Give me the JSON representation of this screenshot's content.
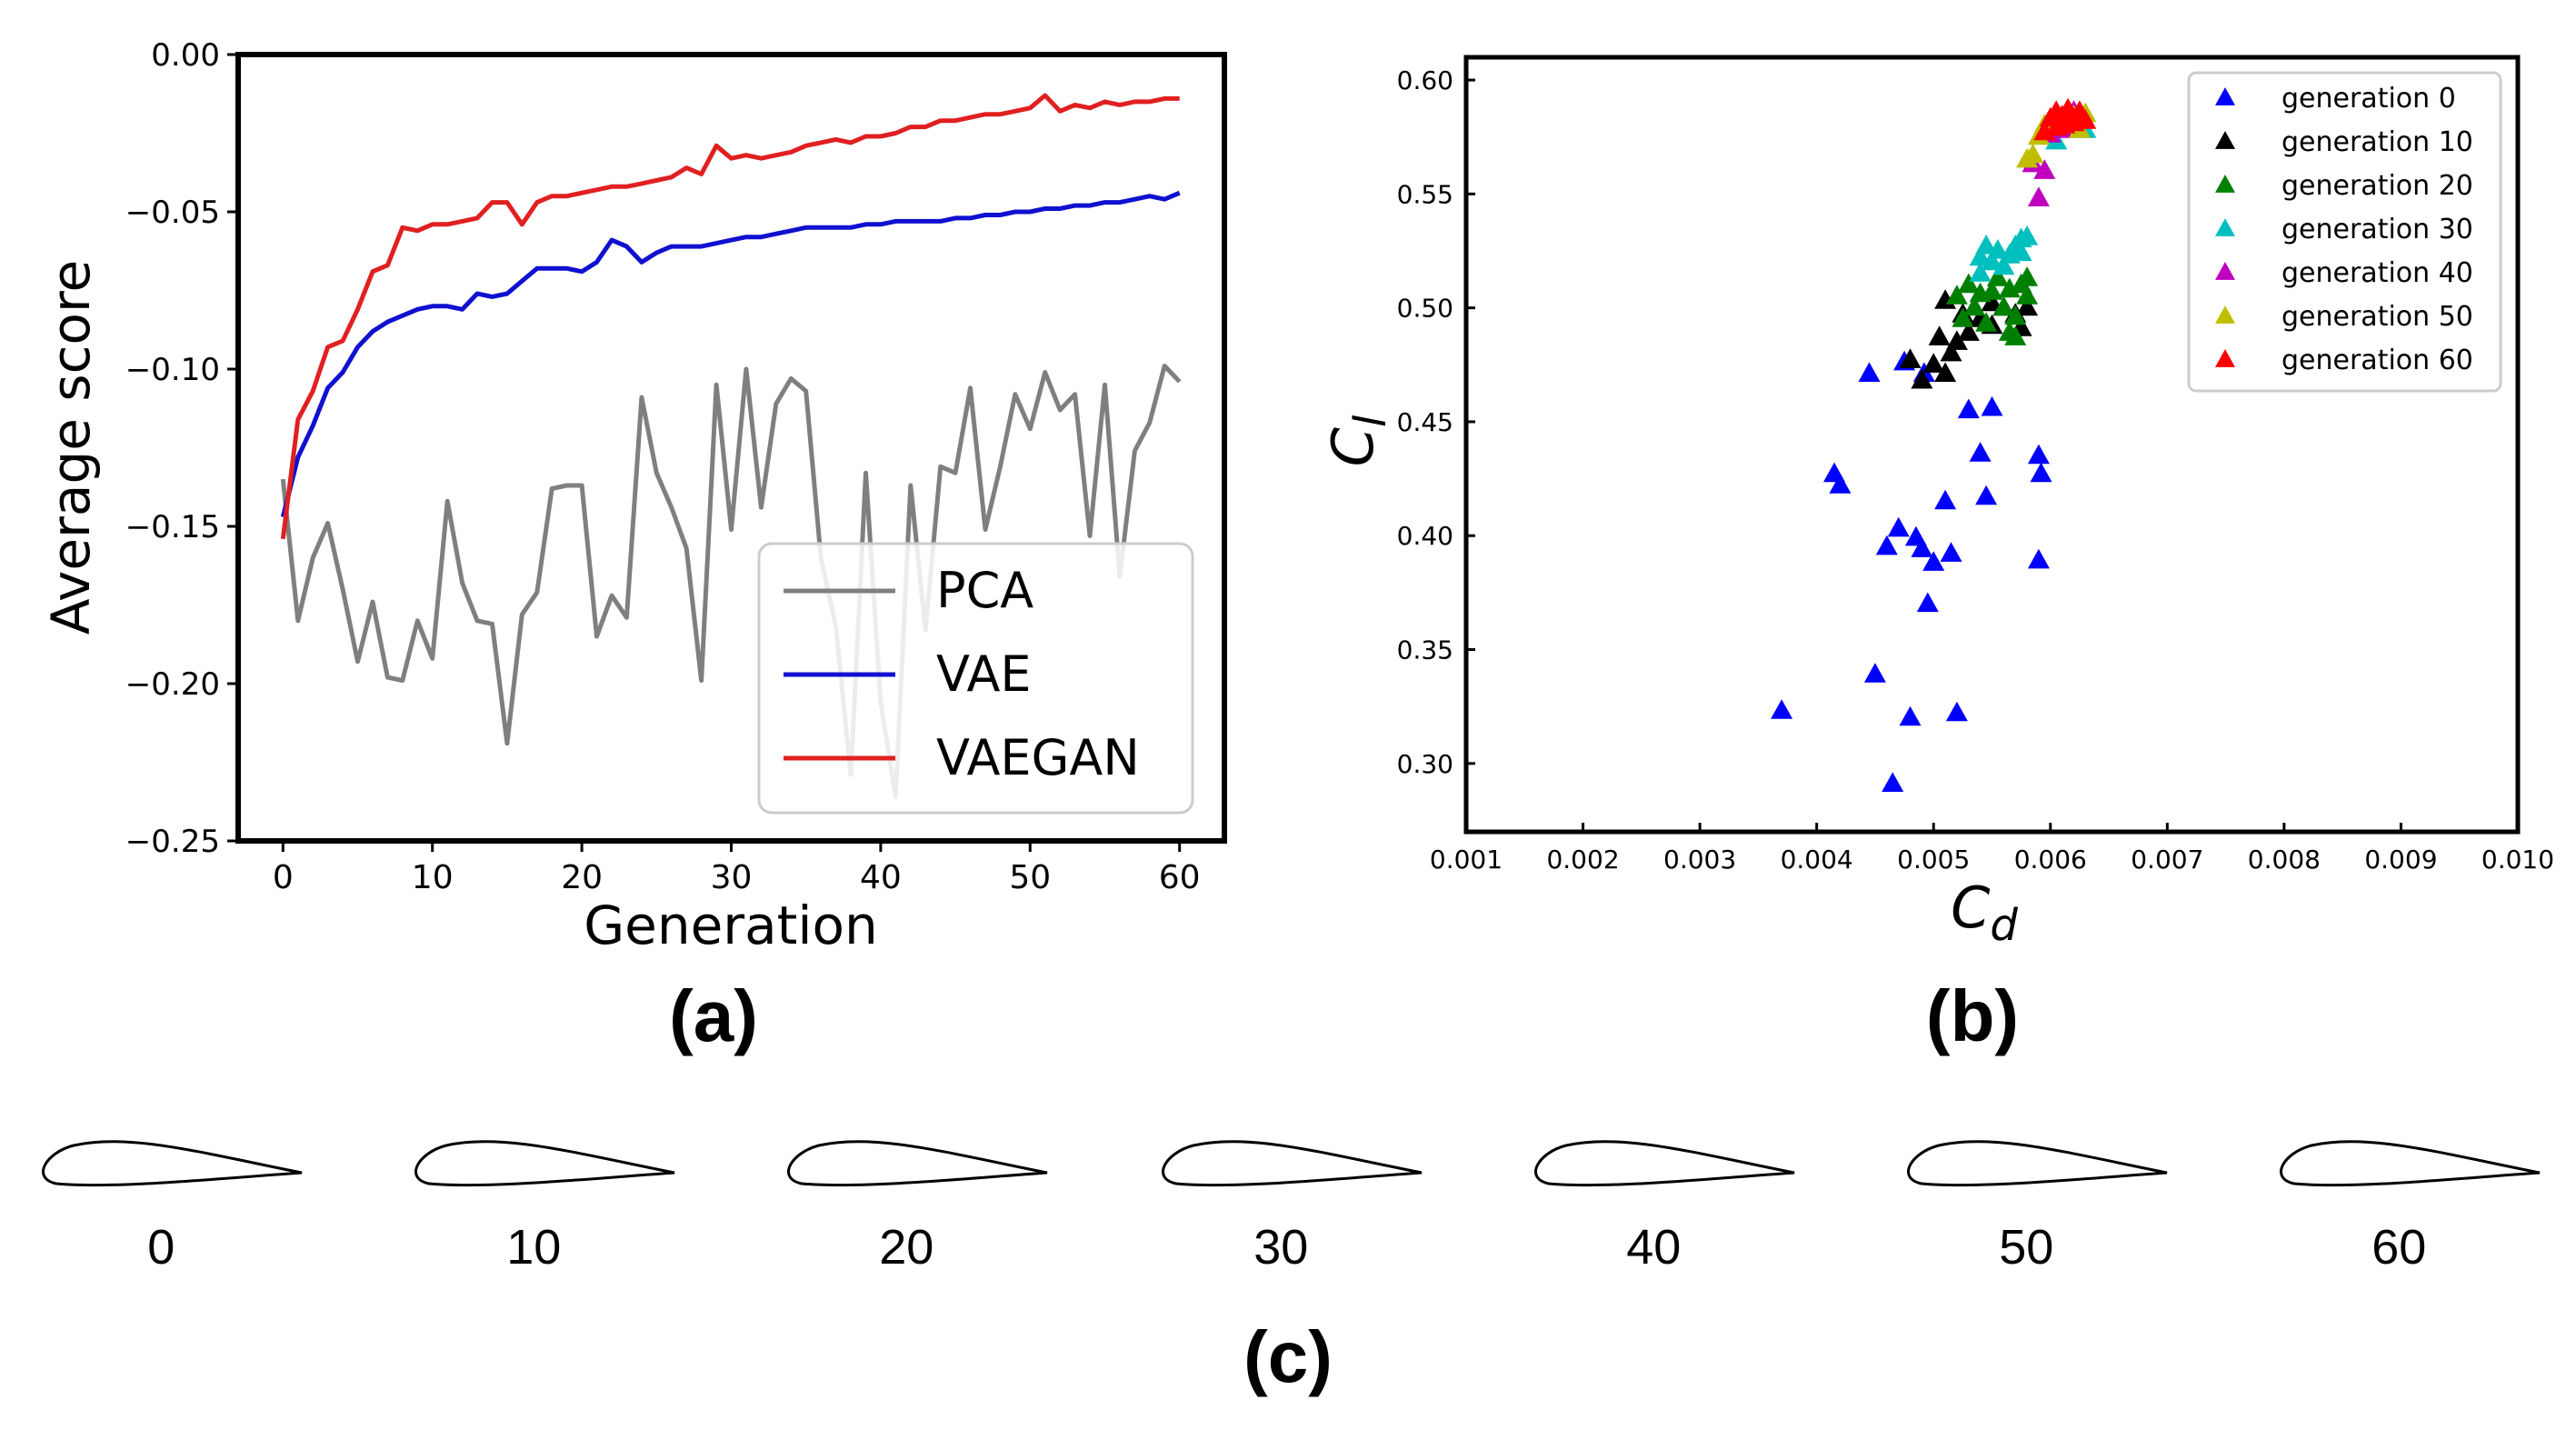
{
  "panels": {
    "a": {
      "label": "(a)"
    },
    "b": {
      "label": "(b)"
    },
    "c": {
      "label": "(c)"
    }
  },
  "chart_data": [
    {
      "id": "a",
      "type": "line",
      "title": "",
      "xlabel": "Generation",
      "ylabel": "Average score",
      "xlim": [
        -3,
        63
      ],
      "ylim": [
        -0.25,
        0.0
      ],
      "xticks": [
        0,
        10,
        20,
        30,
        40,
        50,
        60
      ],
      "xtick_labels": [
        "0",
        "10",
        "20",
        "30",
        "40",
        "50",
        "60"
      ],
      "yticks": [
        0.0,
        -0.05,
        -0.1,
        -0.15,
        -0.2,
        -0.25
      ],
      "ytick_labels": [
        "0.00",
        "−0.05",
        "−0.10",
        "−0.15",
        "−0.20",
        "−0.25"
      ],
      "grid": false,
      "legend_position": "bottom-right",
      "x": [
        0,
        1,
        2,
        3,
        4,
        5,
        6,
        7,
        8,
        9,
        10,
        11,
        12,
        13,
        14,
        15,
        16,
        17,
        18,
        19,
        20,
        21,
        22,
        23,
        24,
        25,
        26,
        27,
        28,
        29,
        30,
        31,
        32,
        33,
        34,
        35,
        36,
        37,
        38,
        39,
        40,
        41,
        42,
        43,
        44,
        45,
        46,
        47,
        48,
        49,
        50,
        51,
        52,
        53,
        54,
        55,
        56,
        57,
        58,
        59,
        60
      ],
      "series": [
        {
          "name": "PCA",
          "color": "#7f7f7f",
          "values": [
            -0.135,
            -0.18,
            -0.16,
            -0.149,
            -0.17,
            -0.193,
            -0.174,
            -0.198,
            -0.199,
            -0.18,
            -0.192,
            -0.142,
            -0.168,
            -0.18,
            -0.181,
            -0.219,
            -0.178,
            -0.171,
            -0.138,
            -0.137,
            -0.137,
            -0.185,
            -0.172,
            -0.179,
            -0.109,
            -0.133,
            -0.144,
            -0.157,
            -0.199,
            -0.105,
            -0.151,
            -0.1,
            -0.144,
            -0.111,
            -0.103,
            -0.107,
            -0.16,
            -0.182,
            -0.229,
            -0.133,
            -0.206,
            -0.236,
            -0.137,
            -0.183,
            -0.131,
            -0.133,
            -0.106,
            -0.151,
            -0.131,
            -0.108,
            -0.119,
            -0.101,
            -0.113,
            -0.108,
            -0.153,
            -0.105,
            -0.166,
            -0.126,
            -0.117,
            -0.099,
            -0.104
          ]
        },
        {
          "name": "VAE",
          "color": "#1010d0",
          "values": [
            -0.147,
            -0.128,
            -0.118,
            -0.106,
            -0.101,
            -0.093,
            -0.088,
            -0.085,
            -0.083,
            -0.081,
            -0.08,
            -0.08,
            -0.081,
            -0.076,
            -0.077,
            -0.076,
            -0.072,
            -0.068,
            -0.068,
            -0.068,
            -0.069,
            -0.066,
            -0.059,
            -0.061,
            -0.066,
            -0.063,
            -0.061,
            -0.061,
            -0.061,
            -0.06,
            -0.059,
            -0.058,
            -0.058,
            -0.057,
            -0.056,
            -0.055,
            -0.055,
            -0.055,
            -0.055,
            -0.054,
            -0.054,
            -0.053,
            -0.053,
            -0.053,
            -0.053,
            -0.052,
            -0.052,
            -0.051,
            -0.051,
            -0.05,
            -0.05,
            -0.049,
            -0.049,
            -0.048,
            -0.048,
            -0.047,
            -0.047,
            -0.046,
            -0.045,
            -0.046,
            -0.044
          ]
        },
        {
          "name": "VAEGAN",
          "color": "#e02020",
          "values": [
            -0.154,
            -0.116,
            -0.107,
            -0.093,
            -0.091,
            -0.081,
            -0.069,
            -0.067,
            -0.055,
            -0.056,
            -0.054,
            -0.054,
            -0.053,
            -0.052,
            -0.047,
            -0.047,
            -0.054,
            -0.047,
            -0.045,
            -0.045,
            -0.044,
            -0.043,
            -0.042,
            -0.042,
            -0.041,
            -0.04,
            -0.039,
            -0.036,
            -0.038,
            -0.029,
            -0.033,
            -0.032,
            -0.033,
            -0.032,
            -0.031,
            -0.029,
            -0.028,
            -0.027,
            -0.028,
            -0.026,
            -0.026,
            -0.025,
            -0.023,
            -0.023,
            -0.021,
            -0.021,
            -0.02,
            -0.019,
            -0.019,
            -0.018,
            -0.017,
            -0.013,
            -0.018,
            -0.016,
            -0.017,
            -0.015,
            -0.016,
            -0.015,
            -0.015,
            -0.014,
            -0.014
          ]
        }
      ]
    },
    {
      "id": "b",
      "type": "scatter",
      "title": "",
      "xlabel": "C",
      "xlabel_sub": "d",
      "ylabel": "C",
      "ylabel_sub": "l",
      "marker": "triangle",
      "xlim": [
        0.001,
        0.01
      ],
      "ylim": [
        0.27,
        0.61
      ],
      "xticks": [
        0.001,
        0.002,
        0.003,
        0.004,
        0.005,
        0.006,
        0.007,
        0.008,
        0.009,
        0.01
      ],
      "xtick_labels": [
        "0.001",
        "0.002",
        "0.003",
        "0.004",
        "0.005",
        "0.006",
        "0.007",
        "0.008",
        "0.009",
        "0.010"
      ],
      "yticks": [
        0.3,
        0.35,
        0.4,
        0.45,
        0.5,
        0.55,
        0.6
      ],
      "ytick_labels": [
        "0.30",
        "0.35",
        "0.40",
        "0.45",
        "0.50",
        "0.55",
        "0.60"
      ],
      "grid": false,
      "legend_position": "top-right",
      "series": [
        {
          "name": "generation 0",
          "color": "#0000ff",
          "points": [
            [
              0.0037,
              0.323
            ],
            [
              0.00415,
              0.427
            ],
            [
              0.0042,
              0.422
            ],
            [
              0.00445,
              0.471
            ],
            [
              0.0045,
              0.339
            ],
            [
              0.0046,
              0.395
            ],
            [
              0.00465,
              0.291
            ],
            [
              0.0047,
              0.403
            ],
            [
              0.00475,
              0.476
            ],
            [
              0.0048,
              0.32
            ],
            [
              0.00485,
              0.399
            ],
            [
              0.0049,
              0.394
            ],
            [
              0.00492,
              0.471
            ],
            [
              0.00495,
              0.37
            ],
            [
              0.005,
              0.388
            ],
            [
              0.0051,
              0.415
            ],
            [
              0.00515,
              0.392
            ],
            [
              0.0052,
              0.322
            ],
            [
              0.0053,
              0.455
            ],
            [
              0.0054,
              0.436
            ],
            [
              0.00545,
              0.417
            ],
            [
              0.0055,
              0.456
            ],
            [
              0.0059,
              0.435
            ],
            [
              0.00592,
              0.427
            ],
            [
              0.0059,
              0.389
            ]
          ]
        },
        {
          "name": "generation 10",
          "color": "#000000",
          "points": [
            [
              0.0048,
              0.477
            ],
            [
              0.0049,
              0.468
            ],
            [
              0.005,
              0.475
            ],
            [
              0.00505,
              0.487
            ],
            [
              0.0051,
              0.503
            ],
            [
              0.0051,
              0.471
            ],
            [
              0.00515,
              0.48
            ],
            [
              0.0052,
              0.485
            ],
            [
              0.00525,
              0.497
            ],
            [
              0.0053,
              0.489
            ],
            [
              0.0054,
              0.495
            ],
            [
              0.0055,
              0.492
            ],
            [
              0.0055,
              0.502
            ],
            [
              0.0056,
              0.5
            ],
            [
              0.0057,
              0.497
            ],
            [
              0.00575,
              0.491
            ],
            [
              0.0058,
              0.5
            ]
          ]
        },
        {
          "name": "generation 20",
          "color": "#008000",
          "points": [
            [
              0.0052,
              0.505
            ],
            [
              0.00525,
              0.495
            ],
            [
              0.0053,
              0.51
            ],
            [
              0.00535,
              0.5
            ],
            [
              0.0054,
              0.506
            ],
            [
              0.00545,
              0.493
            ],
            [
              0.0055,
              0.507
            ],
            [
              0.00555,
              0.513
            ],
            [
              0.0056,
              0.5
            ],
            [
              0.00565,
              0.508
            ],
            [
              0.0057,
              0.496
            ],
            [
              0.0057,
              0.487
            ],
            [
              0.00575,
              0.51
            ],
            [
              0.0058,
              0.505
            ],
            [
              0.0058,
              0.513
            ],
            [
              0.00565,
              0.489
            ]
          ]
        },
        {
          "name": "generation 30",
          "color": "#00bfbf",
          "points": [
            [
              0.0054,
              0.522
            ],
            [
              0.0054,
              0.515
            ],
            [
              0.00545,
              0.527
            ],
            [
              0.0055,
              0.52
            ],
            [
              0.00555,
              0.525
            ],
            [
              0.0056,
              0.518
            ],
            [
              0.00565,
              0.523
            ],
            [
              0.0057,
              0.527
            ],
            [
              0.00575,
              0.53
            ],
            [
              0.0058,
              0.531
            ],
            [
              0.00575,
              0.524
            ],
            [
              0.00605,
              0.573
            ],
            [
              0.0063,
              0.578
            ],
            [
              0.0062,
              0.582
            ]
          ]
        },
        {
          "name": "generation 40",
          "color": "#bf00bf",
          "points": [
            [
              0.0059,
              0.548
            ],
            [
              0.00595,
              0.56
            ],
            [
              0.00585,
              0.563
            ],
            [
              0.006,
              0.576
            ],
            [
              0.0062,
              0.586
            ],
            [
              0.0061,
              0.578
            ]
          ]
        },
        {
          "name": "generation 50",
          "color": "#bfbf00",
          "points": [
            [
              0.0058,
              0.565
            ],
            [
              0.00585,
              0.567
            ],
            [
              0.0059,
              0.575
            ],
            [
              0.00595,
              0.58
            ],
            [
              0.006,
              0.582
            ],
            [
              0.0062,
              0.584
            ],
            [
              0.0063,
              0.585
            ],
            [
              0.00625,
              0.578
            ]
          ]
        },
        {
          "name": "generation 60",
          "color": "#ff0000",
          "points": [
            [
              0.00595,
              0.577
            ],
            [
              0.006,
              0.583
            ],
            [
              0.00605,
              0.586
            ],
            [
              0.0061,
              0.584
            ],
            [
              0.00612,
              0.58
            ],
            [
              0.00615,
              0.587
            ],
            [
              0.0062,
              0.583
            ],
            [
              0.0062,
              0.581
            ],
            [
              0.00625,
              0.586
            ],
            [
              0.0063,
              0.582
            ],
            [
              0.0061,
              0.581
            ],
            [
              0.00605,
              0.579
            ]
          ]
        }
      ]
    }
  ],
  "airfoils": {
    "labels": [
      "0",
      "10",
      "20",
      "30",
      "40",
      "50",
      "60"
    ]
  }
}
